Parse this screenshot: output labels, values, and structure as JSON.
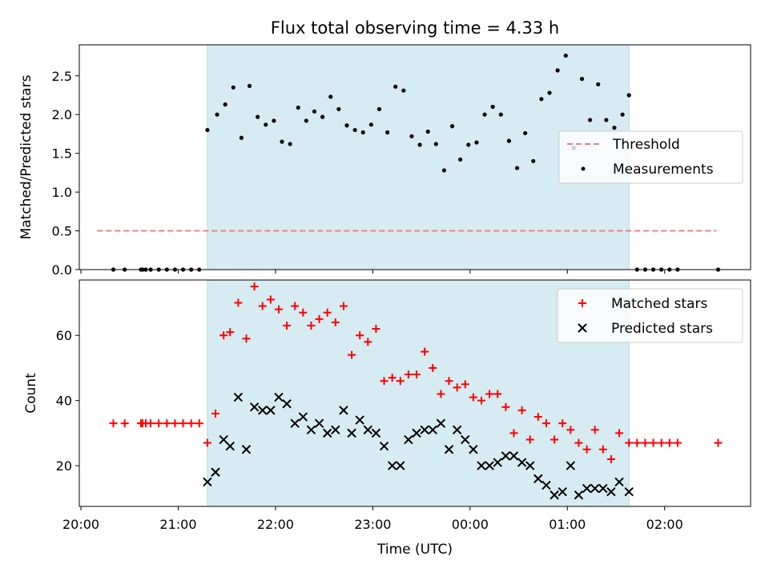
{
  "figure": {
    "title": "Flux total observing time = 4.33 h"
  },
  "chart_data": [
    {
      "type": "scatter",
      "ylabel": "Matched/Predicted stars",
      "xlabel": "",
      "ylim": [
        0,
        2.9
      ],
      "yticks": [
        "0.0",
        "0.5",
        "1.0",
        "1.5",
        "2.0",
        "2.5"
      ],
      "x_axis_is_shared_with_bottom_panel": true,
      "observing_window_shading": {
        "start": "21:18",
        "end": "01:38",
        "color": "#add8e6"
      },
      "threshold": {
        "name": "Threshold",
        "value": 0.5,
        "start": "20:10",
        "end": "02:32",
        "color": "#f08080",
        "style": "dashed"
      },
      "legend": {
        "placement": "center-right",
        "entries": [
          "Threshold",
          "Measurements"
        ]
      },
      "series": [
        {
          "name": "Measurements",
          "marker": "dot",
          "color": "#000000",
          "points": [
            [
              "20:20",
              0
            ],
            [
              "20:27",
              0
            ],
            [
              "20:37",
              0
            ],
            [
              "20:38",
              0
            ],
            [
              "20:40",
              0
            ],
            [
              "20:43",
              0
            ],
            [
              "20:48",
              0
            ],
            [
              "20:53",
              0
            ],
            [
              "20:58",
              0
            ],
            [
              "21:03",
              0
            ],
            [
              "21:08",
              0
            ],
            [
              "21:13",
              0
            ],
            [
              "21:18",
              1.8
            ],
            [
              "21:24",
              2.0
            ],
            [
              "21:29",
              2.13
            ],
            [
              "21:34",
              2.35
            ],
            [
              "21:39",
              1.7
            ],
            [
              "21:44",
              2.37
            ],
            [
              "21:49",
              1.97
            ],
            [
              "21:54",
              1.87
            ],
            [
              "21:59",
              1.92
            ],
            [
              "22:04",
              1.65
            ],
            [
              "22:09",
              1.62
            ],
            [
              "22:14",
              2.09
            ],
            [
              "22:19",
              1.92
            ],
            [
              "22:24",
              2.04
            ],
            [
              "22:29",
              1.97
            ],
            [
              "22:34",
              2.23
            ],
            [
              "22:39",
              2.07
            ],
            [
              "22:44",
              1.86
            ],
            [
              "22:49",
              1.8
            ],
            [
              "22:54",
              1.77
            ],
            [
              "22:59",
              1.87
            ],
            [
              "23:04",
              2.07
            ],
            [
              "23:09",
              1.77
            ],
            [
              "23:14",
              2.36
            ],
            [
              "23:19",
              2.31
            ],
            [
              "23:24",
              1.72
            ],
            [
              "23:29",
              1.61
            ],
            [
              "23:34",
              1.78
            ],
            [
              "23:39",
              1.62
            ],
            [
              "23:44",
              1.28
            ],
            [
              "23:49",
              1.85
            ],
            [
              "23:54",
              1.42
            ],
            [
              "23:59",
              1.61
            ],
            [
              "00:04",
              1.64
            ],
            [
              "00:09",
              2.0
            ],
            [
              "00:14",
              2.1
            ],
            [
              "00:19",
              2.0
            ],
            [
              "00:24",
              1.66
            ],
            [
              "00:29",
              1.31
            ],
            [
              "00:34",
              1.76
            ],
            [
              "00:39",
              1.4
            ],
            [
              "00:44",
              2.2
            ],
            [
              "00:49",
              2.28
            ],
            [
              "00:54",
              2.57
            ],
            [
              "00:59",
              2.76
            ],
            [
              "01:04",
              1.57
            ],
            [
              "01:09",
              2.46
            ],
            [
              "01:14",
              1.93
            ],
            [
              "01:19",
              2.39
            ],
            [
              "01:24",
              1.93
            ],
            [
              "01:29",
              1.83
            ],
            [
              "01:34",
              2.0
            ],
            [
              "01:38",
              2.25
            ],
            [
              "01:43",
              0
            ],
            [
              "01:48",
              0
            ],
            [
              "01:53",
              0
            ],
            [
              "01:58",
              0
            ],
            [
              "02:03",
              0
            ],
            [
              "02:08",
              0
            ],
            [
              "02:33",
              0
            ]
          ]
        }
      ]
    },
    {
      "type": "scatter",
      "ylabel": "Count",
      "xlabel": "Time (UTC)",
      "ylim": [
        7.5,
        77
      ],
      "yticks": [
        "20",
        "40",
        "60"
      ],
      "x_range": [
        "19:59",
        "02:53"
      ],
      "xticks": [
        "20:00",
        "21:00",
        "22:00",
        "23:00",
        "00:00",
        "01:00",
        "02:00"
      ],
      "observing_window_shading": {
        "start": "21:18",
        "end": "01:38",
        "color": "#add8e6"
      },
      "legend": {
        "placement": "top-right",
        "entries": [
          "Matched stars",
          "Predicted stars"
        ]
      },
      "series": [
        {
          "name": "Matched stars",
          "marker": "plus",
          "color": "#ff0000",
          "points": [
            [
              "20:20",
              33
            ],
            [
              "20:27",
              33
            ],
            [
              "20:37",
              33
            ],
            [
              "20:38",
              33
            ],
            [
              "20:40",
              33
            ],
            [
              "20:43",
              33
            ],
            [
              "20:48",
              33
            ],
            [
              "20:53",
              33
            ],
            [
              "20:58",
              33
            ],
            [
              "21:03",
              33
            ],
            [
              "21:08",
              33
            ],
            [
              "21:13",
              33
            ],
            [
              "21:18",
              27
            ],
            [
              "21:23",
              36
            ],
            [
              "21:28",
              60
            ],
            [
              "21:32",
              61
            ],
            [
              "21:37",
              70
            ],
            [
              "21:42",
              59
            ],
            [
              "21:47",
              75
            ],
            [
              "21:52",
              69
            ],
            [
              "21:57",
              71
            ],
            [
              "22:02",
              68
            ],
            [
              "22:07",
              63
            ],
            [
              "22:12",
              69
            ],
            [
              "22:17",
              67
            ],
            [
              "22:22",
              63
            ],
            [
              "22:27",
              65
            ],
            [
              "22:32",
              67
            ],
            [
              "22:37",
              64
            ],
            [
              "22:42",
              69
            ],
            [
              "22:47",
              54
            ],
            [
              "22:52",
              60
            ],
            [
              "22:57",
              58
            ],
            [
              "23:02",
              62
            ],
            [
              "23:07",
              46
            ],
            [
              "23:12",
              47
            ],
            [
              "23:17",
              46
            ],
            [
              "23:22",
              48
            ],
            [
              "23:27",
              48
            ],
            [
              "23:32",
              55
            ],
            [
              "23:37",
              50
            ],
            [
              "23:42",
              42
            ],
            [
              "23:47",
              46
            ],
            [
              "23:52",
              44
            ],
            [
              "23:57",
              45
            ],
            [
              "00:02",
              41
            ],
            [
              "00:07",
              40
            ],
            [
              "00:12",
              42
            ],
            [
              "00:17",
              42
            ],
            [
              "00:22",
              38
            ],
            [
              "00:27",
              30
            ],
            [
              "00:32",
              37
            ],
            [
              "00:37",
              28
            ],
            [
              "00:42",
              35
            ],
            [
              "00:47",
              33
            ],
            [
              "00:52",
              28
            ],
            [
              "00:57",
              33
            ],
            [
              "01:02",
              31
            ],
            [
              "01:07",
              27
            ],
            [
              "01:12",
              25
            ],
            [
              "01:17",
              31
            ],
            [
              "01:22",
              25
            ],
            [
              "01:27",
              22
            ],
            [
              "01:32",
              30
            ],
            [
              "01:38",
              27
            ],
            [
              "01:43",
              27
            ],
            [
              "01:48",
              27
            ],
            [
              "01:53",
              27
            ],
            [
              "01:58",
              27
            ],
            [
              "02:03",
              27
            ],
            [
              "02:08",
              27
            ],
            [
              "02:33",
              27
            ]
          ]
        },
        {
          "name": "Predicted stars",
          "marker": "x",
          "color": "#000000",
          "points": [
            [
              "21:18",
              15
            ],
            [
              "21:23",
              18
            ],
            [
              "21:28",
              28
            ],
            [
              "21:32",
              26
            ],
            [
              "21:37",
              41
            ],
            [
              "21:42",
              25
            ],
            [
              "21:47",
              38
            ],
            [
              "21:52",
              37
            ],
            [
              "21:57",
              37
            ],
            [
              "22:02",
              41
            ],
            [
              "22:07",
              39
            ],
            [
              "22:12",
              33
            ],
            [
              "22:17",
              35
            ],
            [
              "22:22",
              31
            ],
            [
              "22:27",
              33
            ],
            [
              "22:32",
              30
            ],
            [
              "22:37",
              31
            ],
            [
              "22:42",
              37
            ],
            [
              "22:47",
              30
            ],
            [
              "22:52",
              34
            ],
            [
              "22:57",
              31
            ],
            [
              "23:02",
              30
            ],
            [
              "23:07",
              26
            ],
            [
              "23:12",
              20
            ],
            [
              "23:17",
              20
            ],
            [
              "23:22",
              28
            ],
            [
              "23:27",
              30
            ],
            [
              "23:32",
              31
            ],
            [
              "23:37",
              31
            ],
            [
              "23:42",
              33
            ],
            [
              "23:47",
              25
            ],
            [
              "23:52",
              31
            ],
            [
              "23:57",
              28
            ],
            [
              "00:02",
              25
            ],
            [
              "00:07",
              20
            ],
            [
              "00:12",
              20
            ],
            [
              "00:17",
              21
            ],
            [
              "00:22",
              23
            ],
            [
              "00:27",
              23
            ],
            [
              "00:32",
              21
            ],
            [
              "00:37",
              20
            ],
            [
              "00:42",
              16
            ],
            [
              "00:47",
              14
            ],
            [
              "00:52",
              11
            ],
            [
              "00:57",
              12
            ],
            [
              "01:02",
              20
            ],
            [
              "01:07",
              11
            ],
            [
              "01:12",
              13
            ],
            [
              "01:17",
              13
            ],
            [
              "01:22",
              13
            ],
            [
              "01:27",
              12
            ],
            [
              "01:32",
              15
            ],
            [
              "01:38",
              12
            ]
          ]
        }
      ]
    }
  ]
}
